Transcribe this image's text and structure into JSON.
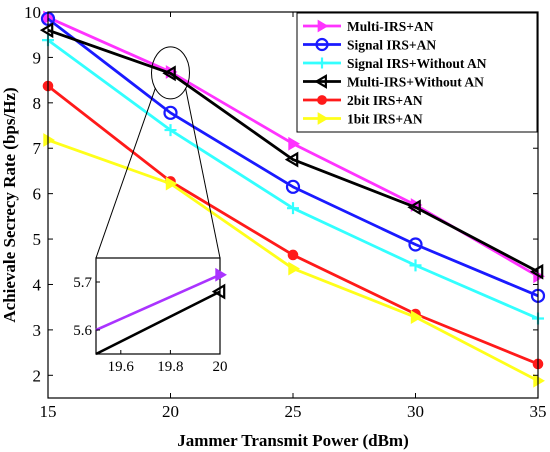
{
  "chart_data": {
    "type": "line",
    "title": "",
    "xlabel": "Jammer Transmit Power (dBm)",
    "ylabel": "Achievale Secrecy Rate (bps/Hz)",
    "x": [
      15,
      20,
      25,
      30,
      35
    ],
    "xlim": [
      15,
      35
    ],
    "ylim": [
      1.5,
      10
    ],
    "xticks": [
      "15",
      "20",
      "25",
      "30",
      "35"
    ],
    "yticks": [
      "2",
      "3",
      "4",
      "5",
      "6",
      "7",
      "8",
      "9",
      "10"
    ],
    "grid": false,
    "legend_position": "top-right",
    "series": [
      {
        "name": "Multi-IRS+AN",
        "color": "#ff33ff",
        "marker": "triangle-right",
        "values": [
          9.88,
          8.68,
          7.1,
          5.75,
          4.18
        ]
      },
      {
        "name": "Signal IRS+AN",
        "color": "#1a1aff",
        "marker": "circle",
        "values": [
          9.85,
          7.78,
          6.15,
          4.88,
          3.75
        ]
      },
      {
        "name": "Signal IRS+Without AN",
        "color": "#33ffff",
        "marker": "plus",
        "values": [
          9.38,
          7.4,
          5.68,
          4.42,
          3.25
        ]
      },
      {
        "name": "Multi-IRS+Without AN",
        "color": "#000000",
        "marker": "triangle-left",
        "values": [
          9.6,
          8.65,
          6.75,
          5.7,
          4.28
        ]
      },
      {
        "name": "2bit IRS+AN",
        "color": "#ff1a1a",
        "marker": "circle-filled",
        "values": [
          8.37,
          6.27,
          4.65,
          3.35,
          2.25
        ]
      },
      {
        "name": "1bit IRS+AN",
        "color": "#ffff1a",
        "marker": "triangle-right",
        "values": [
          7.18,
          6.22,
          4.35,
          3.28,
          1.88
        ]
      }
    ],
    "inset": {
      "xlim": [
        19.5,
        20
      ],
      "ylim": [
        5.55,
        5.75
      ],
      "xticks": [
        "19.6",
        "19.8",
        "20"
      ],
      "yticks": [
        "5.6",
        "5.7"
      ],
      "series": [
        {
          "name": "Multi-IRS+AN",
          "color": "#aa33ff",
          "marker": "triangle-right",
          "x": [
            19.5,
            20
          ],
          "values": [
            5.6,
            5.715
          ]
        },
        {
          "name": "Multi-IRS+Without AN",
          "color": "#000000",
          "marker": "triangle-left",
          "x": [
            19.5,
            20
          ],
          "values": [
            5.55,
            5.68
          ]
        }
      ]
    }
  }
}
